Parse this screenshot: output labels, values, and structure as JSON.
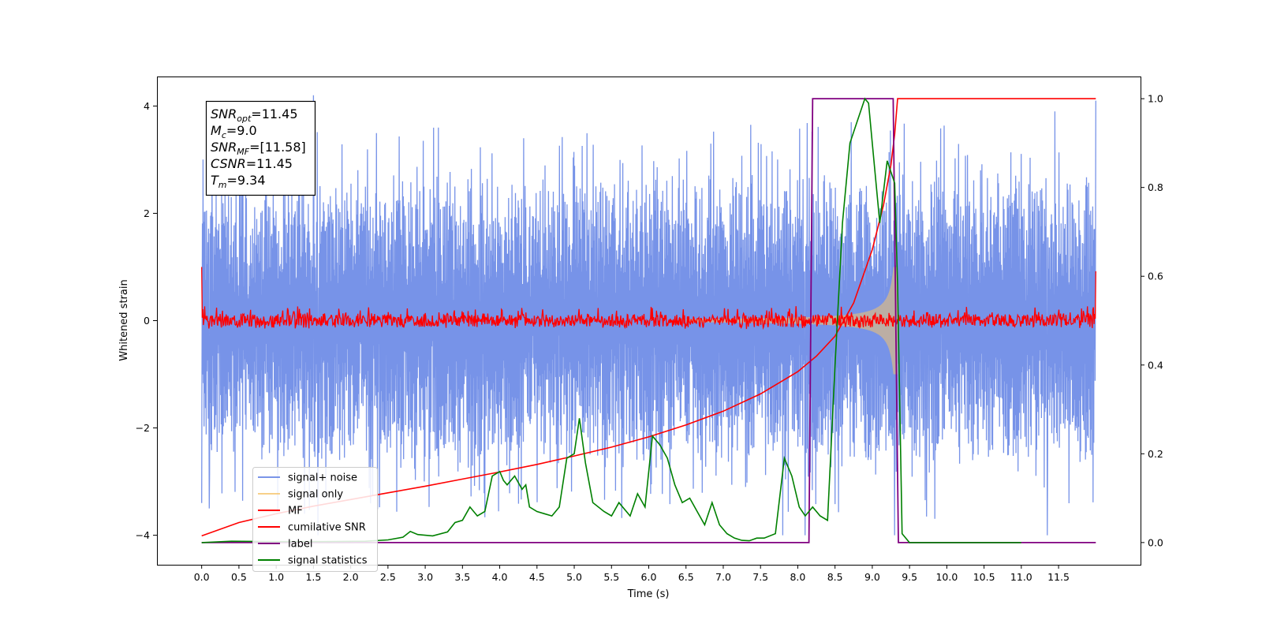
{
  "chart_data": {
    "type": "line",
    "xlabel": "Time (s)",
    "ylabel": "Whitened strain",
    "xlim": [
      -0.6,
      12.6
    ],
    "ylim": [
      -4.55,
      4.55
    ],
    "y2lim": [
      -0.05,
      1.05
    ],
    "xticks": [
      "0.0",
      "0.5",
      "1.0",
      "1.5",
      "2.0",
      "2.5",
      "3.0",
      "3.5",
      "4.0",
      "4.5",
      "5.0",
      "5.5",
      "6.0",
      "6.5",
      "7.0",
      "7.5",
      "8.0",
      "8.5",
      "9.0",
      "9.5",
      "10.0",
      "10.5",
      "11.0",
      "11.5"
    ],
    "yticks": [
      "4",
      "2",
      "0",
      "−2",
      "−4"
    ],
    "y2ticks": [
      "1.0",
      "0.8",
      "0.6",
      "0.4",
      "0.2",
      "0.0"
    ],
    "grid": false,
    "legend_position": "lower-left",
    "colors": {
      "signal_noise": "#6b8ae6",
      "signal_only": "#f5c46b",
      "mf": "#ff0000",
      "cumulative_snr": "#ff0000",
      "label": "#800080",
      "signal_statistics": "#008000"
    },
    "annotation": {
      "lines": [
        {
          "base": "SNR",
          "sub": "opt",
          "value": "=11.45"
        },
        {
          "base": "M",
          "sub": "c",
          "value": "=9.0"
        },
        {
          "base": "SNR",
          "sub": "MF",
          "value": "=[11.58]"
        },
        {
          "base": "CSNR",
          "sub": "",
          "value": "=11.45"
        },
        {
          "base": "T",
          "sub": "m",
          "value": "=9.34"
        }
      ]
    },
    "series": [
      {
        "name": "signal+ noise",
        "axis": "left",
        "kind": "noise-band",
        "x_range": [
          0.0,
          12.0
        ],
        "envelope_typical": [
          -2.3,
          2.5
        ],
        "peaks_max": 4.2,
        "peaks_min": -4.0,
        "spikes": [
          [
            0.0,
            -3.4
          ],
          [
            0.1,
            -3.5
          ],
          [
            1.5,
            4.2
          ],
          [
            1.56,
            -4.0
          ],
          [
            7.3,
            -3.1
          ],
          [
            7.8,
            -4.0
          ],
          [
            8.1,
            -4.0
          ],
          [
            9.3,
            -4.0
          ],
          [
            11.35,
            -4.0
          ],
          [
            11.45,
            3.9
          ],
          [
            12.0,
            4.1
          ]
        ]
      },
      {
        "name": "signal only",
        "axis": "left",
        "kind": "chirp",
        "x_range": [
          6.5,
          9.34
        ],
        "amplitude_start": 0.03,
        "amplitude_end": 1.0,
        "merger_time": 9.34
      },
      {
        "name": "MF",
        "axis": "left",
        "kind": "noise-band",
        "x_range": [
          0.0,
          12.0
        ],
        "envelope_typical": [
          -0.12,
          0.18
        ],
        "start_value": 1.0,
        "end_value": 0.92
      },
      {
        "name": "cumilative SNR",
        "axis": "right",
        "x": [
          0.0,
          0.5,
          1.0,
          1.5,
          2.0,
          2.5,
          3.0,
          3.5,
          4.0,
          4.5,
          5.0,
          5.5,
          6.0,
          6.5,
          7.0,
          7.5,
          8.0,
          8.25,
          8.5,
          8.75,
          9.0,
          9.15,
          9.25,
          9.3,
          9.34,
          12.0
        ],
        "values": [
          0.015,
          0.045,
          0.065,
          0.082,
          0.097,
          0.112,
          0.127,
          0.143,
          0.159,
          0.176,
          0.195,
          0.215,
          0.238,
          0.265,
          0.296,
          0.335,
          0.385,
          0.42,
          0.465,
          0.54,
          0.66,
          0.76,
          0.85,
          0.92,
          1.0,
          1.0
        ]
      },
      {
        "name": "label",
        "axis": "right",
        "x": [
          0.0,
          8.15,
          8.2,
          9.28,
          9.35,
          12.0
        ],
        "values": [
          0.0,
          0.0,
          1.0,
          1.0,
          0.0,
          0.0
        ]
      },
      {
        "name": "signal statistics",
        "axis": "right",
        "x": [
          0.0,
          0.4,
          1.0,
          1.6,
          2.2,
          2.5,
          2.7,
          2.8,
          2.9,
          3.1,
          3.3,
          3.4,
          3.5,
          3.6,
          3.7,
          3.8,
          3.9,
          4.0,
          4.05,
          4.1,
          4.2,
          4.3,
          4.35,
          4.4,
          4.5,
          4.6,
          4.7,
          4.8,
          4.9,
          5.0,
          5.07,
          5.15,
          5.25,
          5.4,
          5.5,
          5.6,
          5.75,
          5.85,
          5.95,
          6.05,
          6.15,
          6.25,
          6.35,
          6.45,
          6.55,
          6.65,
          6.75,
          6.85,
          6.95,
          7.05,
          7.15,
          7.25,
          7.35,
          7.45,
          7.55,
          7.7,
          7.82,
          7.92,
          8.02,
          8.1,
          8.2,
          8.3,
          8.4,
          8.5,
          8.6,
          8.7,
          8.8,
          8.9,
          8.95,
          9.0,
          9.1,
          9.2,
          9.3,
          9.34,
          9.4,
          9.5,
          11.0
        ],
        "values": [
          0.0,
          0.003,
          0.002,
          0.002,
          0.003,
          0.006,
          0.012,
          0.025,
          0.018,
          0.015,
          0.024,
          0.045,
          0.05,
          0.08,
          0.06,
          0.07,
          0.15,
          0.16,
          0.14,
          0.13,
          0.15,
          0.12,
          0.13,
          0.08,
          0.07,
          0.065,
          0.06,
          0.08,
          0.19,
          0.2,
          0.28,
          0.18,
          0.09,
          0.07,
          0.06,
          0.09,
          0.06,
          0.11,
          0.08,
          0.24,
          0.22,
          0.19,
          0.13,
          0.09,
          0.1,
          0.07,
          0.04,
          0.09,
          0.04,
          0.02,
          0.01,
          0.005,
          0.004,
          0.01,
          0.01,
          0.02,
          0.19,
          0.15,
          0.08,
          0.06,
          0.08,
          0.06,
          0.05,
          0.4,
          0.72,
          0.9,
          0.95,
          1.0,
          0.99,
          0.9,
          0.72,
          0.86,
          0.81,
          0.58,
          0.02,
          0.0,
          0.0
        ]
      }
    ]
  }
}
